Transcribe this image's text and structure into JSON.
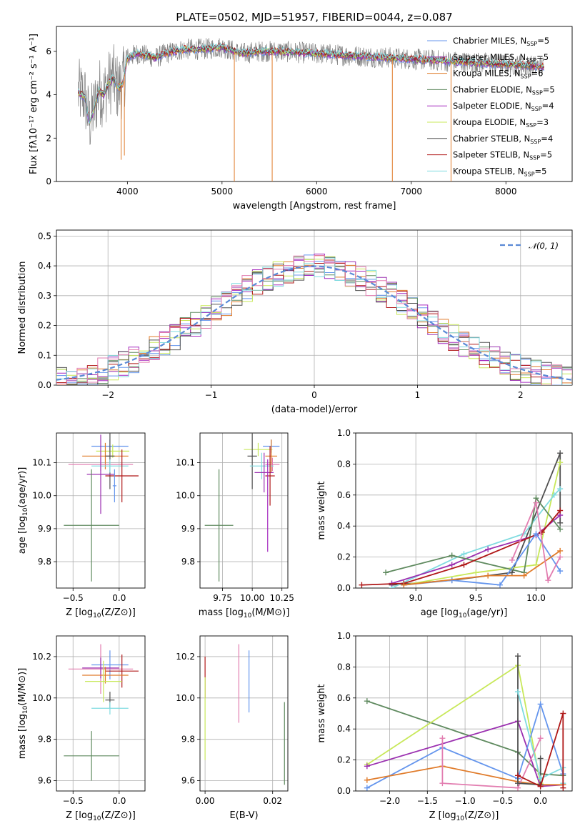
{
  "figure_title": "PLATE=0502, MJD=51957, FIBERID=0044, z=0.087",
  "colors": {
    "chabrier_miles": "#6495ed",
    "salpeter_miles": "#9b30b0",
    "kroupa_miles": "#e07b2a",
    "chabrier_elodie": "#5f8a5f",
    "salpeter_elodie": "#a52abf",
    "kroupa_elodie": "#c8e85a",
    "chabrier_stelib": "#505050",
    "salpeter_stelib": "#b01818",
    "kroupa_stelib": "#7fdbe0",
    "pink": "#e27db0",
    "data_spectrum": "#808080",
    "gaussian": "#5a8ad6"
  },
  "chart_data": [
    {
      "id": "spectrum",
      "type": "line",
      "title": "PLATE=0502, MJD=51957, FIBERID=0044, z=0.087",
      "xlabel": "wavelength [Angstrom, rest frame]",
      "ylabel": "Flux [f_λ 10^-17 erg cm^-2 s^-1 A^-1]",
      "xlim": [
        3250,
        8700
      ],
      "ylim": [
        0,
        7.15
      ],
      "xticks": [
        "4000",
        "5000",
        "6000",
        "7000",
        "8000"
      ],
      "yticks": [
        "0",
        "2",
        "4",
        "6"
      ],
      "grid": false,
      "legend_position": "upper right",
      "legend": [
        {
          "label": "Chabrier MILES",
          "nssp": "5",
          "color_key": "chabrier_miles"
        },
        {
          "label": "Salpeter MILES",
          "nssp": "5",
          "color_key": "salpeter_miles"
        },
        {
          "label": "Kroupa MILES",
          "nssp": "6",
          "color_key": "kroupa_miles"
        },
        {
          "label": "Chabrier ELODIE",
          "nssp": "5",
          "color_key": "chabrier_elodie"
        },
        {
          "label": "Salpeter ELODIE",
          "nssp": "4",
          "color_key": "salpeter_elodie"
        },
        {
          "label": "Kroupa ELODIE",
          "nssp": "3",
          "color_key": "kroupa_elodie"
        },
        {
          "label": "Chabrier STELIB",
          "nssp": "4",
          "color_key": "chabrier_stelib"
        },
        {
          "label": "Salpeter STELIB",
          "nssp": "5",
          "color_key": "salpeter_stelib"
        },
        {
          "label": "Kroupa STELIB",
          "nssp": "5",
          "color_key": "kroupa_stelib"
        }
      ],
      "continuum": {
        "x": [
          3480,
          3550,
          3600,
          3650,
          3700,
          3750,
          3800,
          3850,
          3900,
          3950,
          4000,
          4100,
          4200,
          4300,
          4400,
          4500,
          4600,
          4800,
          5000,
          5200,
          5400,
          5600,
          5800,
          6000,
          6200,
          6400,
          6600,
          6800,
          7000,
          7200,
          7400,
          7600,
          7800,
          8000,
          8200,
          8400
        ],
        "y": [
          4.1,
          3.9,
          2.7,
          3.4,
          4.2,
          4.0,
          4.5,
          4.8,
          4.3,
          4.5,
          5.7,
          5.9,
          5.8,
          5.7,
          5.9,
          6.0,
          6.1,
          6.1,
          6.2,
          5.9,
          6.0,
          6.0,
          5.95,
          5.9,
          5.85,
          5.8,
          5.75,
          5.7,
          5.65,
          5.6,
          5.55,
          5.5,
          5.45,
          5.4,
          5.35,
          5.3
        ]
      },
      "absorption_lines": [
        {
          "x": 3934,
          "y": 1.0
        },
        {
          "x": 3968,
          "y": 1.2
        },
        {
          "x": 5130,
          "y": 0.0
        },
        {
          "x": 5530,
          "y": 0.0
        },
        {
          "x": 6800,
          "y": 0.0
        },
        {
          "x": 7420,
          "y": 0.0
        }
      ]
    },
    {
      "id": "residuals",
      "type": "line",
      "xlabel": "(data-model)/error",
      "ylabel": "Normed distribution",
      "xlim": [
        -2.5,
        2.5
      ],
      "ylim": [
        0,
        0.52
      ],
      "xticks": [
        "−2",
        "−1",
        "0",
        "1",
        "2"
      ],
      "yticks": [
        "0.0",
        "0.1",
        "0.2",
        "0.3",
        "0.4",
        "0.5"
      ],
      "grid": true,
      "legend": [
        {
          "label": "𝒩(0, 1)",
          "color_key": "gaussian",
          "style": "dashed"
        }
      ],
      "legend_position": "upper right",
      "histogram_bin_width": 0.1,
      "gaussian": {
        "mean": 0,
        "sigma": 1
      }
    },
    {
      "id": "age_vs_Z",
      "type": "scatter",
      "xlabel": "Z [log10(Z/Z⊙)]",
      "ylabel": "age [log10(age/yr)]",
      "xlim": [
        -0.68,
        0.28
      ],
      "ylim": [
        9.72,
        10.19
      ],
      "xticks": [
        "−0.5",
        "0.0"
      ],
      "yticks": [
        "9.8",
        "9.9",
        "10.0",
        "10.1"
      ],
      "grid": true,
      "points": [
        {
          "x": -0.1,
          "y": 10.15,
          "xerr": 0.2,
          "yerr": 0.02,
          "color_key": "chabrier_miles"
        },
        {
          "x": -0.07,
          "y": 10.135,
          "xerr": 0.18,
          "yerr": 0.02,
          "color_key": "kroupa_elodie"
        },
        {
          "x": -0.15,
          "y": 10.12,
          "xerr": 0.25,
          "yerr": 0.04,
          "color_key": "kroupa_miles"
        },
        {
          "x": -0.1,
          "y": 10.12,
          "xerr": 0.05,
          "yerr": 0.1,
          "color_key": "chabrier_stelib"
        },
        {
          "x": -0.2,
          "y": 10.095,
          "xerr": 0.35,
          "yerr": 0.02,
          "color_key": "pink"
        },
        {
          "x": -0.1,
          "y": 10.09,
          "xerr": 0.2,
          "yerr": 0.02,
          "color_key": "kroupa_stelib"
        },
        {
          "x": -0.2,
          "y": 10.065,
          "xerr": 0.15,
          "yerr": 0.12,
          "color_key": "salpeter_miles"
        },
        {
          "x": 0.03,
          "y": 10.06,
          "xerr": 0.18,
          "yerr": 0.08,
          "color_key": "salpeter_stelib"
        },
        {
          "x": -0.05,
          "y": 10.03,
          "xerr": 0.02,
          "yerr": 0.05,
          "color_key": "chabrier_miles"
        },
        {
          "x": -0.3,
          "y": 9.91,
          "xerr": 0.3,
          "yerr": 0.17,
          "color_key": "chabrier_elodie"
        }
      ]
    },
    {
      "id": "age_vs_mass",
      "type": "scatter",
      "xlabel": "mass [log10(M/M⊙)]",
      "ylabel": "",
      "xlim": [
        9.56,
        10.3
      ],
      "ylim": [
        9.72,
        10.19
      ],
      "xticks": [
        "9.75",
        "10.00",
        "10.25"
      ],
      "yticks": [
        "9.8",
        "9.9",
        "10.0",
        "10.1"
      ],
      "grid": true,
      "points": [
        {
          "x": 10.16,
          "y": 10.15,
          "xerr": 0.07,
          "yerr": 0.02,
          "color_key": "chabrier_miles"
        },
        {
          "x": 10.05,
          "y": 10.14,
          "xerr": 0.12,
          "yerr": 0.02,
          "color_key": "kroupa_elodie"
        },
        {
          "x": 10.16,
          "y": 10.12,
          "xerr": 0.05,
          "yerr": 0.05,
          "color_key": "kroupa_miles"
        },
        {
          "x": 10.0,
          "y": 10.12,
          "xerr": 0.04,
          "yerr": 0.1,
          "color_key": "chabrier_stelib"
        },
        {
          "x": 10.17,
          "y": 10.095,
          "xerr": 0.06,
          "yerr": 0.02,
          "color_key": "pink"
        },
        {
          "x": 10.08,
          "y": 10.09,
          "xerr": 0.1,
          "yerr": 0.04,
          "color_key": "kroupa_stelib"
        },
        {
          "x": 10.1,
          "y": 10.07,
          "xerr": 0.08,
          "yerr": 0.06,
          "color_key": "salpeter_miles"
        },
        {
          "x": 10.15,
          "y": 10.06,
          "xerr": 0.04,
          "yerr": 0.09,
          "color_key": "salpeter_stelib"
        },
        {
          "x": 10.13,
          "y": 9.97,
          "xerr": 0.0,
          "yerr": 0.14,
          "color_key": "salpeter_elodie"
        },
        {
          "x": 9.72,
          "y": 9.91,
          "xerr": 0.12,
          "yerr": 0.17,
          "color_key": "chabrier_elodie"
        }
      ]
    },
    {
      "id": "weight_vs_age",
      "type": "line",
      "xlabel": "age [log10(age/yr)]",
      "ylabel": "mass weight",
      "xlim": [
        8.5,
        10.3
      ],
      "ylim": [
        0,
        1.0
      ],
      "xticks": [
        "9.0",
        "9.5",
        "10.0"
      ],
      "yticks": [
        "0.0",
        "0.2",
        "0.4",
        "0.6",
        "0.8",
        "1.0"
      ],
      "grid": true,
      "series": [
        {
          "color_key": "chabrier_stelib",
          "x": [
            8.8,
            9.3,
            9.8,
            10.2,
            10.2
          ],
          "y": [
            0.02,
            0.05,
            0.1,
            0.87,
            0.42
          ]
        },
        {
          "color_key": "kroupa_elodie",
          "x": [
            8.9,
            9.5,
            10.0,
            10.2
          ],
          "y": [
            0.02,
            0.1,
            0.15,
            0.81
          ]
        },
        {
          "color_key": "kroupa_stelib",
          "x": [
            8.8,
            9.4,
            9.9,
            10.15,
            10.2
          ],
          "y": [
            0.0,
            0.22,
            0.35,
            0.6,
            0.64
          ]
        },
        {
          "color_key": "salpeter_miles",
          "x": [
            8.8,
            9.3,
            9.6,
            10.0,
            10.2
          ],
          "y": [
            0.03,
            0.15,
            0.25,
            0.34,
            0.47
          ]
        },
        {
          "color_key": "chabrier_elodie",
          "x": [
            8.75,
            9.3,
            9.9,
            10.0,
            10.2
          ],
          "y": [
            0.1,
            0.21,
            0.1,
            0.58,
            0.38
          ]
        },
        {
          "color_key": "salpeter_stelib",
          "x": [
            8.55,
            8.9,
            9.4,
            10.05,
            10.2
          ],
          "y": [
            0.02,
            0.03,
            0.15,
            0.36,
            0.5
          ]
        },
        {
          "color_key": "chabrier_miles",
          "x": [
            8.9,
            9.3,
            9.7,
            10.0,
            10.2
          ],
          "y": [
            0.02,
            0.05,
            0.02,
            0.35,
            0.11
          ]
        },
        {
          "color_key": "kroupa_miles",
          "x": [
            8.9,
            9.6,
            9.9,
            10.2
          ],
          "y": [
            0.02,
            0.08,
            0.08,
            0.24
          ]
        },
        {
          "color_key": "pink",
          "x": [
            9.8,
            10.0,
            10.1,
            10.2
          ],
          "y": [
            0.18,
            0.55,
            0.05,
            0.2
          ]
        }
      ]
    },
    {
      "id": "mass_vs_Z",
      "type": "scatter",
      "xlabel": "Z [log10(Z/Z⊙)]",
      "ylabel": "mass [log10(M/M⊙)]",
      "xlim": [
        -0.68,
        0.28
      ],
      "ylim": [
        9.55,
        10.3
      ],
      "xticks": [
        "−0.5",
        "0.0"
      ],
      "yticks": [
        "9.6",
        "9.8",
        "10.0",
        "10.2"
      ],
      "grid": true,
      "points": [
        {
          "x": -0.1,
          "y": 10.16,
          "xerr": 0.2,
          "yerr": 0.07,
          "color_key": "chabrier_miles"
        },
        {
          "x": -0.2,
          "y": 10.14,
          "xerr": 0.35,
          "yerr": 0.12,
          "color_key": "pink"
        },
        {
          "x": -0.2,
          "y": 10.145,
          "xerr": 0.2,
          "yerr": 0.05,
          "color_key": "salpeter_miles"
        },
        {
          "x": 0.03,
          "y": 10.13,
          "xerr": 0.18,
          "yerr": 0.08,
          "color_key": "salpeter_stelib"
        },
        {
          "x": -0.15,
          "y": 10.11,
          "xerr": 0.25,
          "yerr": 0.04,
          "color_key": "kroupa_miles"
        },
        {
          "x": -0.17,
          "y": 10.08,
          "xerr": 0.2,
          "yerr": 0.1,
          "color_key": "kroupa_elodie"
        },
        {
          "x": -0.1,
          "y": 9.99,
          "xerr": 0.05,
          "yerr": 0.04,
          "color_key": "chabrier_stelib"
        },
        {
          "x": -0.1,
          "y": 9.95,
          "xerr": 0.2,
          "yerr": 0.03,
          "color_key": "kroupa_stelib"
        },
        {
          "x": -0.3,
          "y": 9.72,
          "xerr": 0.3,
          "yerr": 0.12,
          "color_key": "chabrier_elodie"
        }
      ]
    },
    {
      "id": "mass_vs_ebv",
      "type": "scatter",
      "xlabel": "E(B-V)",
      "ylabel": "",
      "xlim": [
        -0.0015,
        0.0245
      ],
      "ylim": [
        9.55,
        10.3
      ],
      "xticks": [
        "0.00",
        "0.02"
      ],
      "yticks": [
        "9.6",
        "9.8",
        "10.0",
        "10.2"
      ],
      "grid": true,
      "points": [
        {
          "x": 0.0,
          "y": 10.1,
          "xerr": 0,
          "yerr": 0.1,
          "color_key": "salpeter_stelib"
        },
        {
          "x": 0.0,
          "y": 9.9,
          "xerr": 0,
          "yerr": 0.2,
          "color_key": "kroupa_elodie"
        },
        {
          "x": 0.01,
          "y": 10.07,
          "xerr": 0,
          "yerr": 0.19,
          "color_key": "pink"
        },
        {
          "x": 0.013,
          "y": 10.08,
          "xerr": 0,
          "yerr": 0.15,
          "color_key": "chabrier_miles"
        },
        {
          "x": 0.0235,
          "y": 9.78,
          "xerr": 0,
          "yerr": 0.2,
          "color_key": "chabrier_elodie"
        }
      ]
    },
    {
      "id": "weight_vs_Z",
      "type": "line",
      "xlabel": "Z [log10(Z/Z⊙)]",
      "ylabel": "mass weight",
      "xlim": [
        -2.45,
        0.42
      ],
      "ylim": [
        0,
        1.0
      ],
      "xticks": [
        "−2.0",
        "−1.5",
        "−1.0",
        "−0.5",
        "0.0"
      ],
      "yticks": [
        "0.0",
        "0.2",
        "0.4",
        "0.6",
        "0.8",
        "1.0"
      ],
      "grid": true,
      "series": [
        {
          "color_key": "chabrier_elodie",
          "x": [
            -2.3,
            -0.3,
            0.0,
            0.3
          ],
          "y": [
            0.58,
            0.25,
            0.11,
            0.1
          ]
        },
        {
          "color_key": "kroupa_elodie",
          "x": [
            -2.3,
            -0.3,
            0.0
          ],
          "y": [
            0.17,
            0.81,
            0.05
          ]
        },
        {
          "color_key": "salpeter_miles",
          "x": [
            -2.3,
            -0.3,
            0.0,
            0.3
          ],
          "y": [
            0.16,
            0.45,
            0.03,
            0.04
          ]
        },
        {
          "color_key": "chabrier_miles",
          "x": [
            -2.3,
            -1.3,
            -0.3,
            0.0,
            0.3
          ],
          "y": [
            0.02,
            0.28,
            0.08,
            0.56,
            0.11
          ]
        },
        {
          "color_key": "kroupa_miles",
          "x": [
            -2.3,
            -1.3,
            -0.3,
            0.0,
            0.3
          ],
          "y": [
            0.07,
            0.16,
            0.06,
            0.04,
            0.04
          ]
        },
        {
          "color_key": "pink",
          "x": [
            -1.3,
            -1.3,
            -0.3,
            0.0
          ],
          "y": [
            0.34,
            0.05,
            0.02,
            0.34
          ]
        },
        {
          "color_key": "chabrier_stelib",
          "x": [
            -0.3,
            -0.3,
            0.0,
            0.0
          ],
          "y": [
            0.87,
            0.05,
            0.04,
            0.21
          ]
        },
        {
          "color_key": "kroupa_stelib",
          "x": [
            -0.3,
            0.0,
            0.3,
            0.3
          ],
          "y": [
            0.64,
            0.08,
            0.15,
            0.05
          ]
        },
        {
          "color_key": "salpeter_stelib",
          "x": [
            -0.3,
            0.0,
            0.3,
            0.3
          ],
          "y": [
            0.1,
            0.03,
            0.5,
            0.02
          ]
        }
      ]
    }
  ]
}
